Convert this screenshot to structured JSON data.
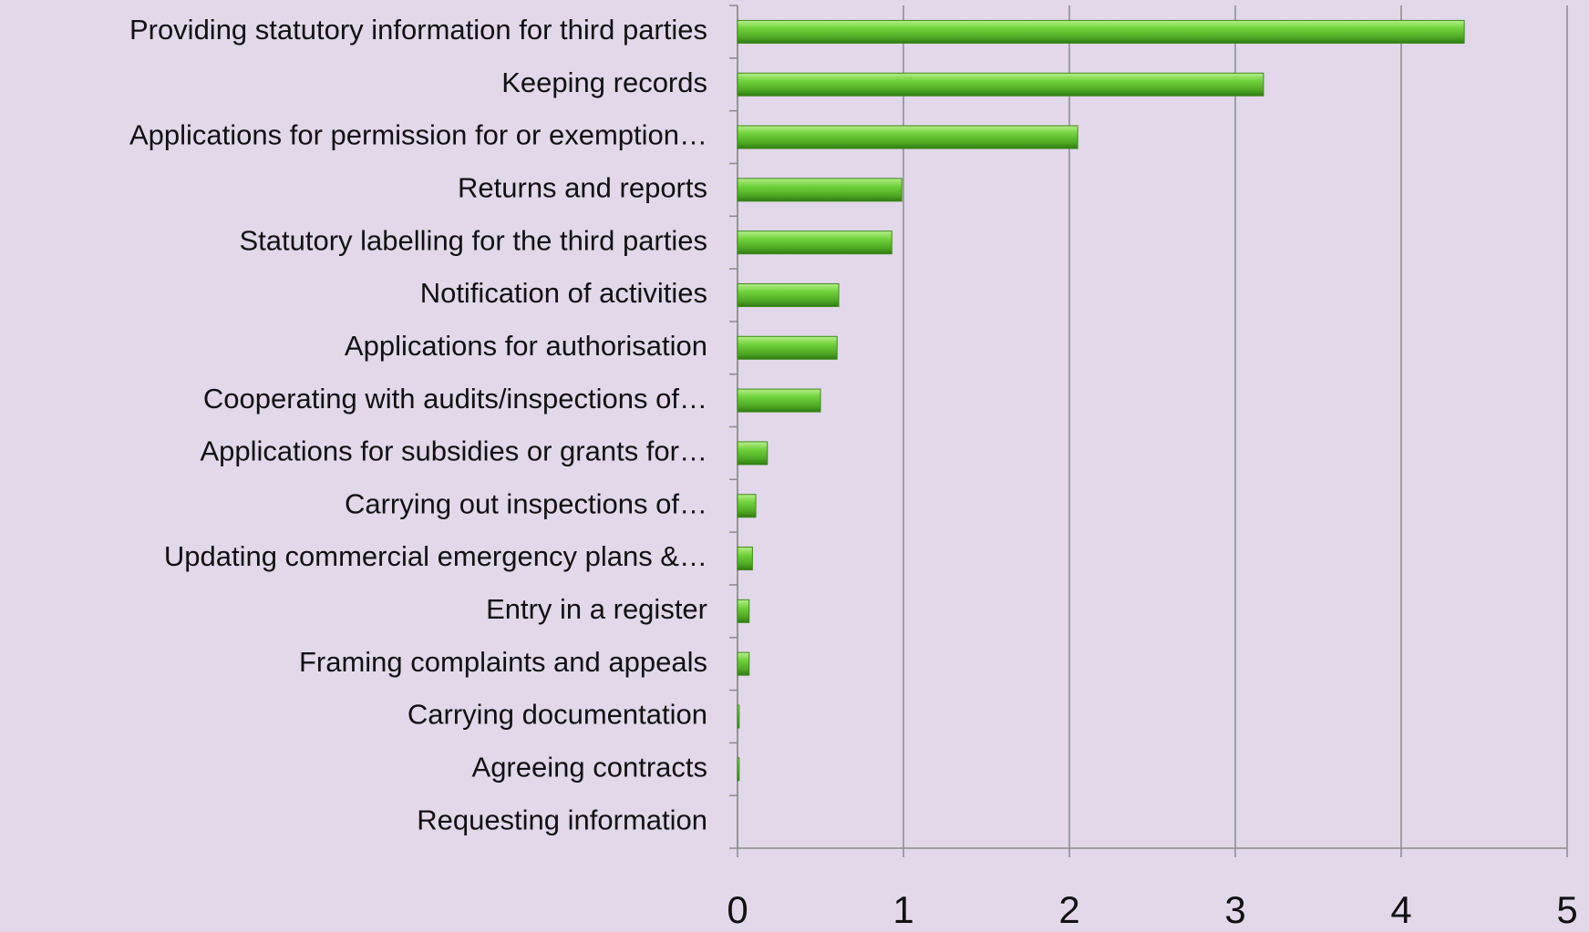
{
  "chart_data": {
    "type": "bar",
    "orientation": "horizontal",
    "categories": [
      "Providing statutory information for third parties",
      "Keeping records",
      "Applications for permission for or exemption…",
      "Returns and reports",
      "Statutory labelling for the third parties",
      "Notification of activities",
      "Applications for authorisation",
      "Cooperating with audits/inspections of…",
      "Applications for subsidies or grants for…",
      "Carrying out inspections of…",
      "Updating commercial emergency plans &…",
      "Entry in a register",
      "Framing complaints and appeals",
      "Carrying documentation",
      "Agreeing contracts",
      "Requesting information"
    ],
    "values": [
      4.38,
      3.17,
      2.05,
      0.99,
      0.93,
      0.61,
      0.6,
      0.5,
      0.18,
      0.11,
      0.09,
      0.07,
      0.07,
      0.01,
      0.01,
      0
    ],
    "color": "#5cc22c",
    "xlim": [
      0,
      5
    ],
    "xticks": [
      0,
      1,
      2,
      3,
      4,
      5
    ],
    "grid": true
  }
}
